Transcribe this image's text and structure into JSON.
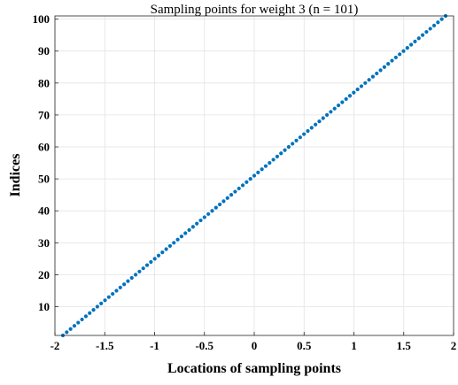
{
  "chart_data": {
    "type": "scatter",
    "title": "Sampling points for weight 3  (n = 101)",
    "xlabel": "Locations of sampling points",
    "ylabel": "Indices",
    "xlim": [
      -2,
      2
    ],
    "ylim": [
      1,
      101
    ],
    "xticks": [
      -2,
      -1.5,
      -1,
      -0.5,
      0,
      0.5,
      1,
      1.5,
      2
    ],
    "xtick_labels": [
      "-2",
      "-1.5",
      "-1",
      "-0.5",
      "0",
      "0.5",
      "1",
      "1.5",
      "2"
    ],
    "yticks": [
      10,
      20,
      30,
      40,
      50,
      60,
      70,
      80,
      90,
      100
    ],
    "ytick_labels": [
      "10",
      "20",
      "30",
      "40",
      "50",
      "60",
      "70",
      "80",
      "90",
      "100"
    ],
    "grid": true,
    "legend": false,
    "series": [
      {
        "n": 101,
        "x_range": [
          -1.92,
          1.92
        ],
        "y_range": [
          1,
          101
        ],
        "marker_color": "#0072BD"
      }
    ]
  }
}
